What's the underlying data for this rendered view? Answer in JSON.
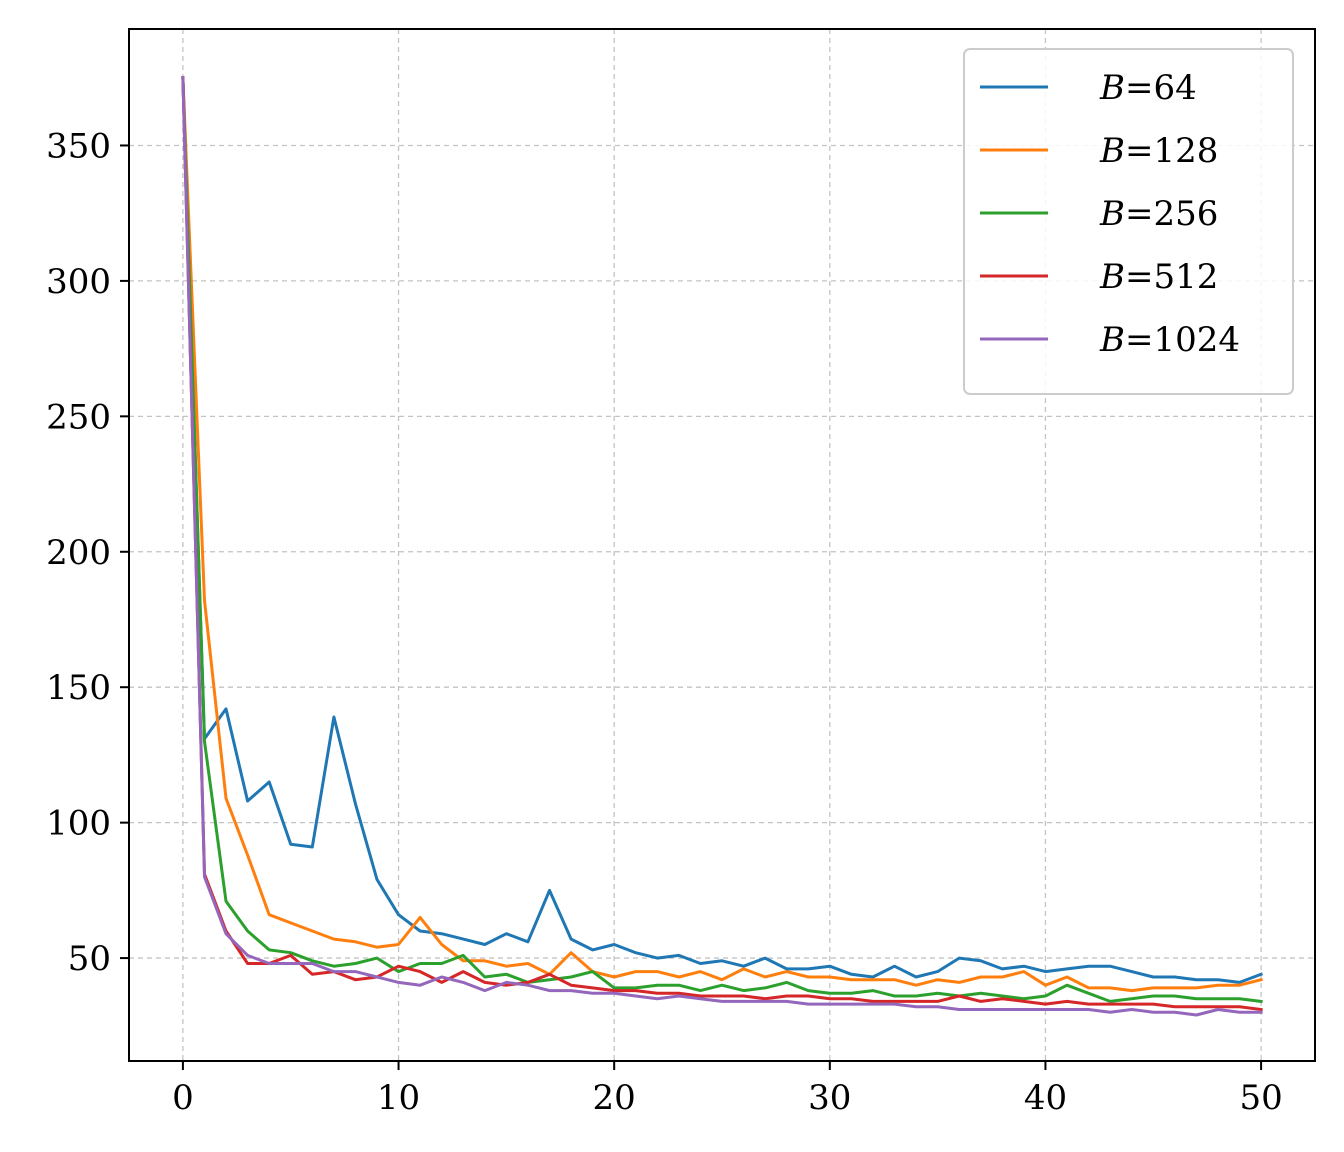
{
  "chart_data": {
    "type": "line",
    "title": "",
    "xlabel": "",
    "ylabel": "",
    "xlim": [
      -2.5,
      52.5
    ],
    "ylim": [
      12,
      393
    ],
    "xticks": [
      0,
      10,
      20,
      30,
      40,
      50
    ],
    "yticks": [
      50,
      100,
      150,
      200,
      250,
      300,
      350
    ],
    "grid": true,
    "legend_position": "top-right",
    "x": [
      0,
      1,
      2,
      3,
      4,
      5,
      6,
      7,
      8,
      9,
      10,
      11,
      12,
      13,
      14,
      15,
      16,
      17,
      18,
      19,
      20,
      21,
      22,
      23,
      24,
      25,
      26,
      27,
      28,
      29,
      30,
      31,
      32,
      33,
      34,
      35,
      36,
      37,
      38,
      39,
      40,
      41,
      42,
      43,
      44,
      45,
      46,
      47,
      48,
      49,
      50
    ],
    "series": [
      {
        "name": "B=64",
        "legend_prefix": "B",
        "legend_suffix": "=64",
        "color": "#1f77b4",
        "values": [
          375,
          131,
          142,
          108,
          115,
          92,
          91,
          139,
          107,
          79,
          66,
          60,
          59,
          57,
          55,
          59,
          56,
          75,
          57,
          53,
          55,
          52,
          50,
          51,
          48,
          49,
          47,
          50,
          46,
          46,
          47,
          44,
          43,
          47,
          43,
          45,
          50,
          49,
          46,
          47,
          45,
          46,
          47,
          47,
          45,
          43,
          43,
          42,
          42,
          41,
          44
        ]
      },
      {
        "name": "B=128",
        "legend_prefix": "B",
        "legend_suffix": "=128",
        "color": "#ff7f0e",
        "values": [
          375,
          182,
          109,
          88,
          66,
          63,
          60,
          57,
          56,
          54,
          55,
          65,
          55,
          49,
          49,
          47,
          48,
          44,
          52,
          45,
          43,
          45,
          45,
          43,
          45,
          42,
          46,
          43,
          45,
          43,
          43,
          42,
          42,
          42,
          40,
          42,
          41,
          43,
          43,
          45,
          40,
          43,
          39,
          39,
          38,
          39,
          39,
          39,
          40,
          40,
          42
        ]
      },
      {
        "name": "B=256",
        "legend_prefix": "B",
        "legend_suffix": "=256",
        "color": "#2ca02c",
        "values": [
          375,
          130,
          71,
          60,
          53,
          52,
          49,
          47,
          48,
          50,
          45,
          48,
          48,
          51,
          43,
          44,
          41,
          42,
          43,
          45,
          39,
          39,
          40,
          40,
          38,
          40,
          38,
          39,
          41,
          38,
          37,
          37,
          38,
          36,
          36,
          37,
          36,
          37,
          36,
          35,
          36,
          40,
          37,
          34,
          35,
          36,
          36,
          35,
          35,
          35,
          34
        ]
      },
      {
        "name": "B=512",
        "legend_prefix": "B",
        "legend_suffix": "=512",
        "color": "#d62728",
        "values": [
          375,
          81,
          60,
          48,
          48,
          51,
          44,
          45,
          42,
          43,
          47,
          45,
          41,
          45,
          41,
          40,
          41,
          44,
          40,
          39,
          38,
          38,
          37,
          37,
          36,
          36,
          36,
          35,
          36,
          36,
          35,
          35,
          34,
          34,
          34,
          34,
          36,
          34,
          35,
          34,
          33,
          34,
          33,
          33,
          33,
          33,
          32,
          32,
          32,
          32,
          31
        ]
      },
      {
        "name": "B=1024",
        "legend_prefix": "B",
        "legend_suffix": "=1024",
        "color": "#9467bd",
        "values": [
          375,
          80,
          59,
          51,
          48,
          48,
          48,
          45,
          45,
          43,
          41,
          40,
          43,
          41,
          38,
          41,
          40,
          38,
          38,
          37,
          37,
          36,
          35,
          36,
          35,
          34,
          34,
          34,
          34,
          33,
          33,
          33,
          33,
          33,
          32,
          32,
          31,
          31,
          31,
          31,
          31,
          31,
          31,
          30,
          31,
          30,
          30,
          29,
          31,
          30,
          30
        ]
      }
    ]
  }
}
